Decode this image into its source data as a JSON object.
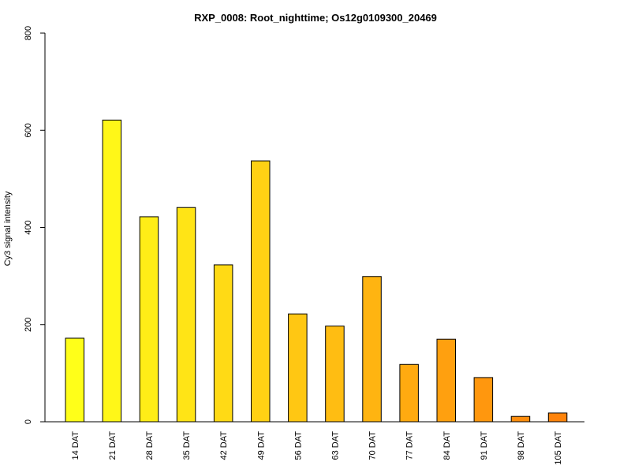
{
  "chart_data": {
    "type": "bar",
    "title": "RXP_0008: Root_nighttime; Os12g0109300_20469",
    "xlabel": "",
    "ylabel": "Cy3 signal intensity",
    "ylim": [
      0,
      800
    ],
    "yticks": [
      0,
      200,
      400,
      600,
      800
    ],
    "grid": false,
    "legend": "none",
    "categories": [
      "14 DAT",
      "21 DAT",
      "28 DAT",
      "35 DAT",
      "42 DAT",
      "49 DAT",
      "56 DAT",
      "63 DAT",
      "70 DAT",
      "77 DAT",
      "84 DAT",
      "91 DAT",
      "98 DAT",
      "105 DAT"
    ],
    "values": [
      172,
      621,
      422,
      441,
      323,
      537,
      222,
      197,
      299,
      118,
      170,
      91,
      11,
      18
    ],
    "colors": [
      "#FFFF19",
      "#FFF718",
      "#FFED17",
      "#FFE416",
      "#FFDA15",
      "#FFD114",
      "#FFC713",
      "#FFBD12",
      "#FFB411",
      "#FFAA10",
      "#FFA00F",
      "#FF970E",
      "#FF8D0D",
      "#FF840C"
    ]
  }
}
